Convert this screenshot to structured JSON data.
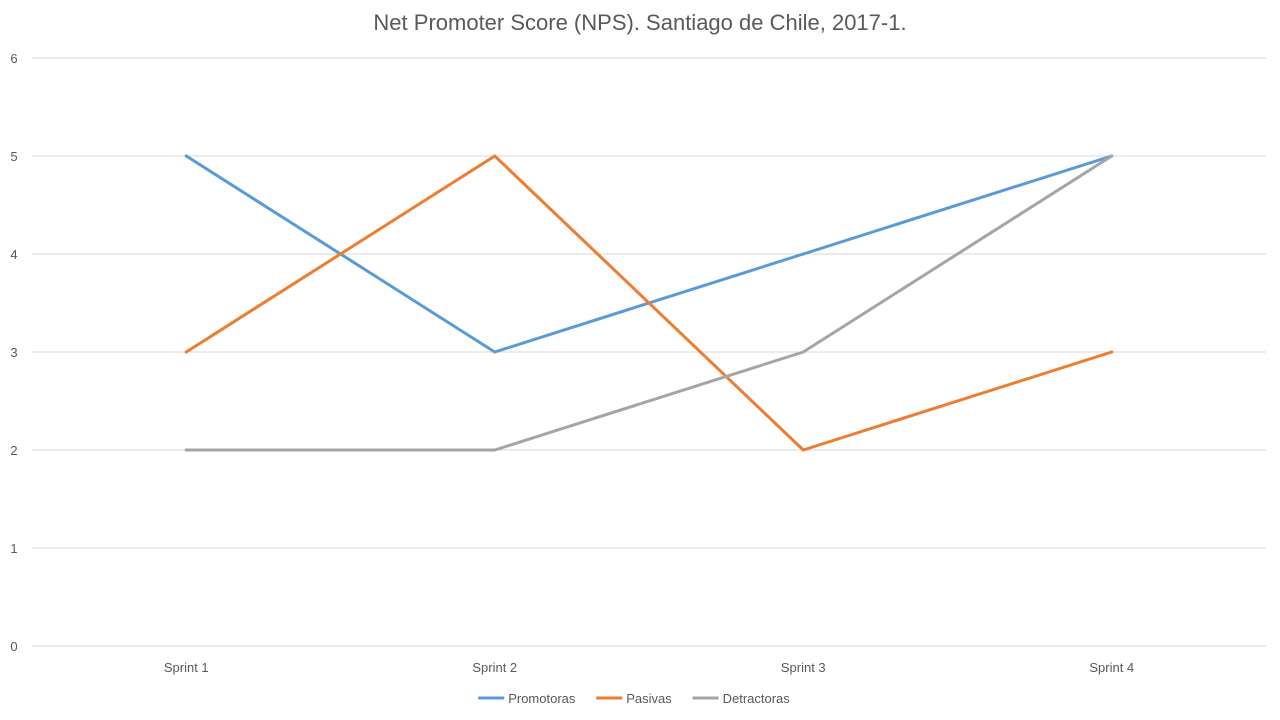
{
  "chart_data": {
    "type": "line",
    "title": "Net Promoter Score (NPS). Santiago de Chile, 2017-1.",
    "xlabel": "",
    "ylabel": "",
    "categories": [
      "Sprint 1",
      "Sprint 2",
      "Sprint 3",
      "Sprint 4"
    ],
    "ylim": [
      0,
      6
    ],
    "yticks": [
      0,
      1,
      2,
      3,
      4,
      5,
      6
    ],
    "grid": true,
    "legend_position": "bottom",
    "series": [
      {
        "name": "Promotoras",
        "color": "#5b9bd5",
        "values": [
          5,
          3,
          4,
          5
        ]
      },
      {
        "name": "Pasivas",
        "color": "#ed7d31",
        "values": [
          3,
          5,
          2,
          3
        ]
      },
      {
        "name": "Detractoras",
        "color": "#a5a5a5",
        "values": [
          2,
          2,
          3,
          5
        ]
      }
    ]
  }
}
